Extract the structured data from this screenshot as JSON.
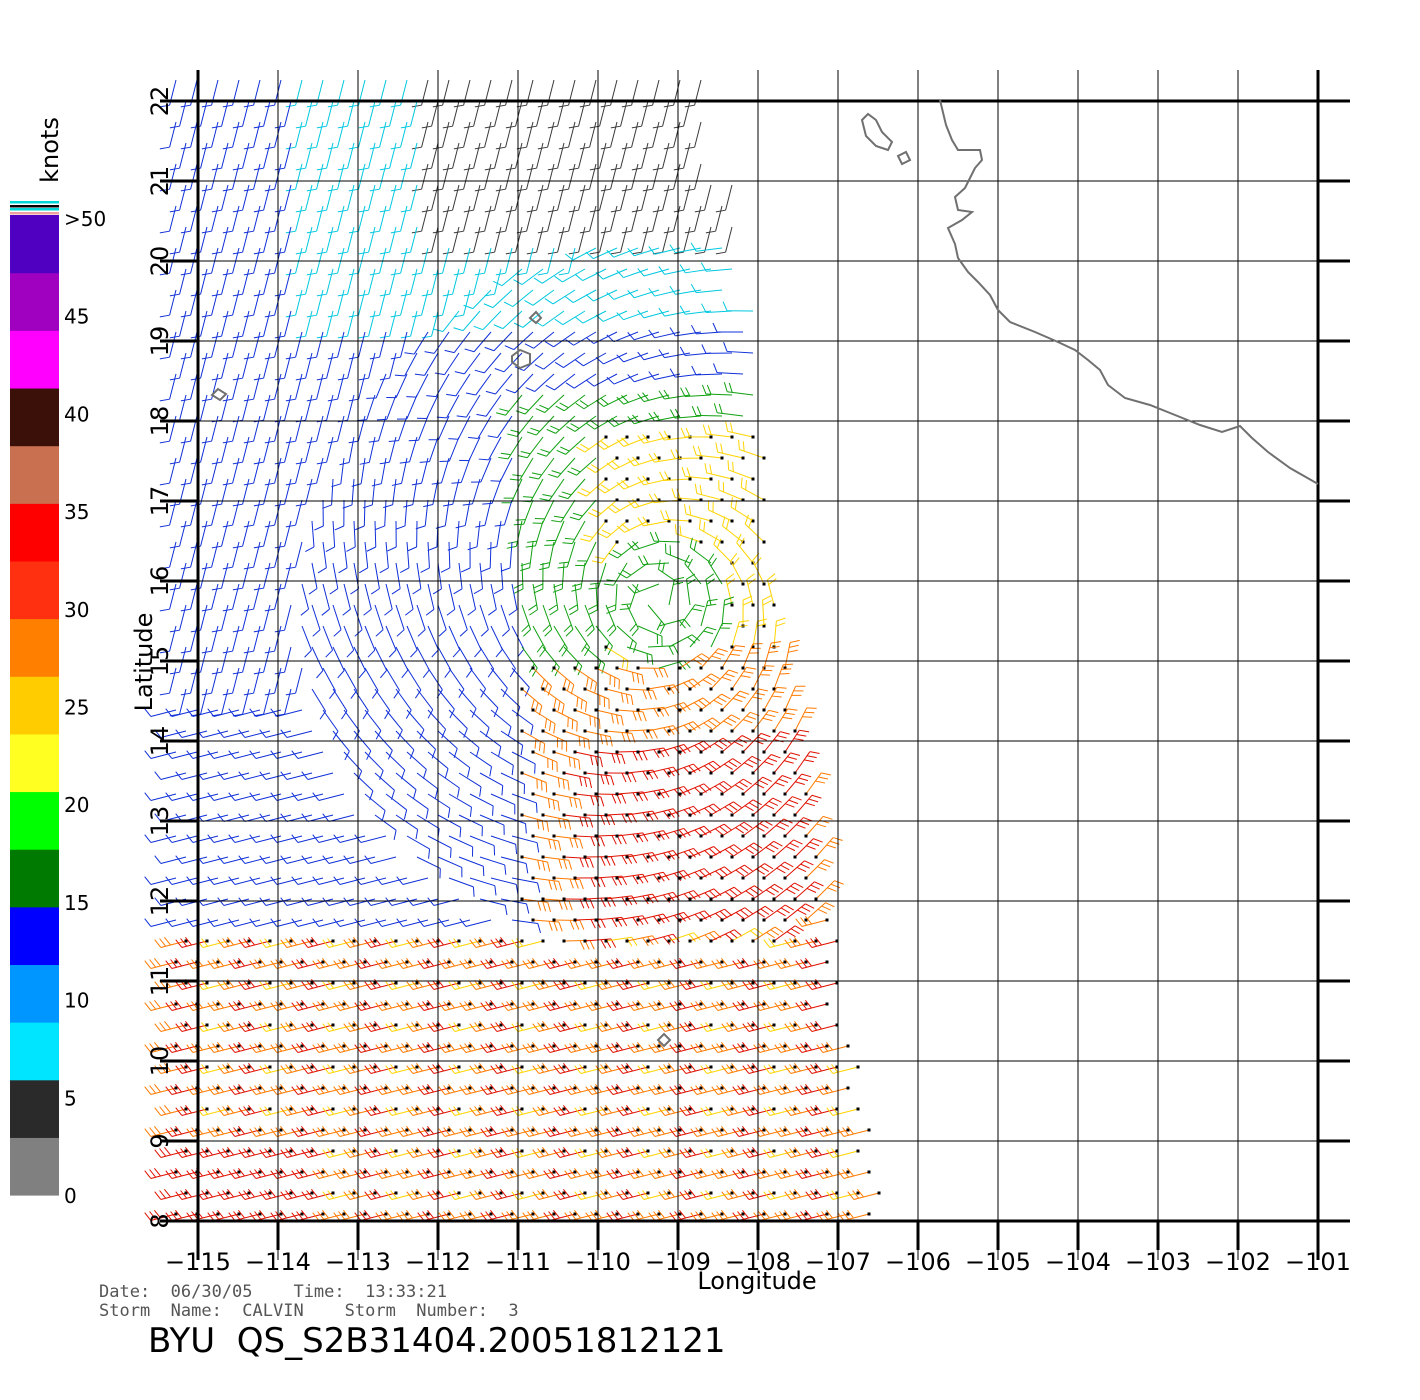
{
  "colorbar": {
    "unit_label": "knots",
    "tick_labels": [
      "0",
      "5",
      "10",
      "15",
      "20",
      "25",
      "30",
      "35",
      "40",
      "45",
      ">50"
    ],
    "colors": [
      "#808080",
      "#2a2a2a",
      "#00e5ff",
      "#0096ff",
      "#0000ff",
      "#007a00",
      "#00ff00",
      "#ffff22",
      "#ffcc00",
      "#ff8000",
      "#ff3010",
      "#ff0000",
      "#c87050",
      "#3a1008",
      "#ff00ff",
      "#a000c0",
      "#5000c0"
    ]
  },
  "axes": {
    "xlabel": "Longitude",
    "ylabel": "Latitude",
    "lon_ticks": [
      "−115",
      "−114",
      "−113",
      "−112",
      "−111",
      "−110",
      "−109",
      "−108",
      "−107",
      "−106",
      "−105",
      "−104",
      "−103",
      "−102",
      "−101"
    ],
    "lat_ticks": [
      "8",
      "9",
      "10",
      "11",
      "12",
      "13",
      "14",
      "15",
      "16",
      "17",
      "18",
      "19",
      "20",
      "21",
      "22"
    ],
    "lon_range": [
      -115,
      -101
    ],
    "lat_range": [
      8,
      22
    ]
  },
  "info": {
    "line1": "Date:  06/30/05    Time:  13:33:21",
    "line2": "Storm  Name:  CALVIN    Storm  Number:  3",
    "title": "BYU  QS_S2B31404.20051812121"
  },
  "map_colors": {
    "coast": "#707070",
    "grid": "#000000"
  }
}
